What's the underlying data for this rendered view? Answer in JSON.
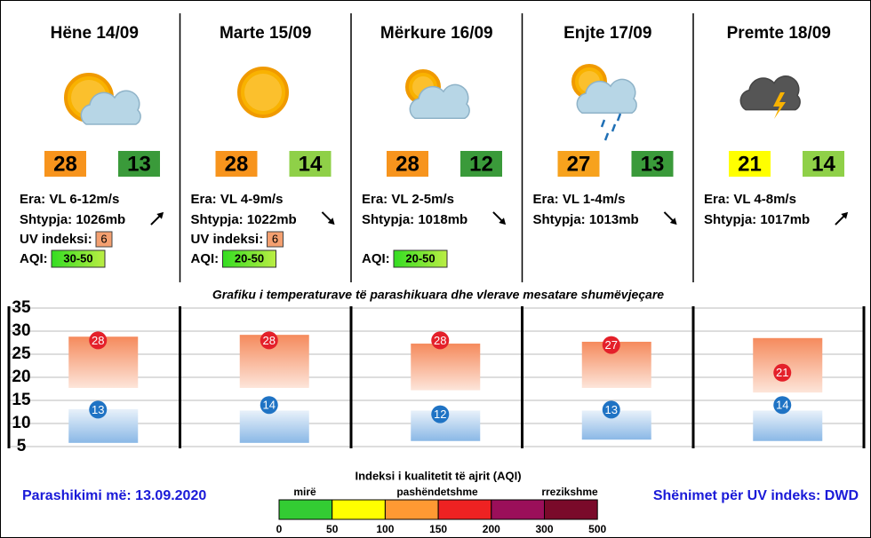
{
  "days": [
    {
      "name": "Hëne 14/09",
      "wind": "Era: VL 6-12m/s",
      "pressure": "Shtypja: 1026mb",
      "uv_label": "UV indeksi:",
      "uv": 6,
      "aqi_label": "AQI:",
      "aqi": "30-50"
    },
    {
      "name": "Marte 15/09",
      "wind": "Era: VL 4-9m/s",
      "pressure": "Shtypja: 1022mb",
      "uv_label": "UV indeksi:",
      "uv": 6,
      "aqi_label": "AQI:",
      "aqi": "20-50"
    },
    {
      "name": "Mërkure 16/09",
      "wind": "Era: VL 2-5m/s",
      "pressure": "Shtypja: 1018mb",
      "aqi_label": "AQI:",
      "aqi": "20-50"
    },
    {
      "name": "Enjte 17/09",
      "wind": "Era: VL 1-4m/s",
      "pressure": "Shtypja: 1013mb"
    },
    {
      "name": "Premte 18/09",
      "wind": "Era: VL 4-8m/s",
      "pressure": "Shtypja: 1017mb"
    }
  ],
  "chart_data": {
    "type": "range",
    "title": "Grafiku i temperaturave të parashikuara dhe vlerave mesatare shumëvjeçare",
    "ylim": [
      5,
      35
    ],
    "yticks": [
      5,
      10,
      15,
      20,
      25,
      30,
      35
    ],
    "grid": true,
    "series": [
      {
        "color": "#e4202a",
        "box_color": "#f58a5c",
        "values": [
          28,
          28,
          28,
          27,
          21
        ],
        "label_colors": [
          "#f7941d",
          "#f7941d",
          "#f7941d",
          "#f7a21d",
          "#ffff00"
        ],
        "range_low": [
          17.7,
          17.7,
          17.2,
          17.7,
          16.7
        ],
        "range_high": [
          28.8,
          29.2,
          27.3,
          27.7,
          28.5
        ]
      },
      {
        "color": "#1f73c4",
        "box_color": "#8ab8e6",
        "values": [
          13,
          14,
          12,
          13,
          14
        ],
        "label_colors": [
          "#3a9a3a",
          "#8fd048",
          "#3a9a3a",
          "#3a9a3a",
          "#8fd048"
        ],
        "range_low": [
          5.8,
          5.8,
          6.2,
          6.5,
          6.2
        ],
        "range_high": [
          13.1,
          12.8,
          12.8,
          12.8,
          12.8
        ]
      }
    ]
  },
  "aqi_legend": {
    "title": "Indeksi i kualitetit të ajrit (AQI)",
    "labels": [
      "mirë",
      "pashëndetshme",
      "rrezikshme"
    ],
    "ticks": [
      0,
      50,
      100,
      150,
      200,
      300,
      500
    ],
    "colors": [
      "#33cc33",
      "#ffff00",
      "#ff9933",
      "#ee2222",
      "#9b0f5a",
      "#7a0a2a"
    ]
  },
  "footer": {
    "issued": "Parashikimi më: 13.09.2020",
    "uv_source": "Shënimet për UV indeks: DWD"
  }
}
